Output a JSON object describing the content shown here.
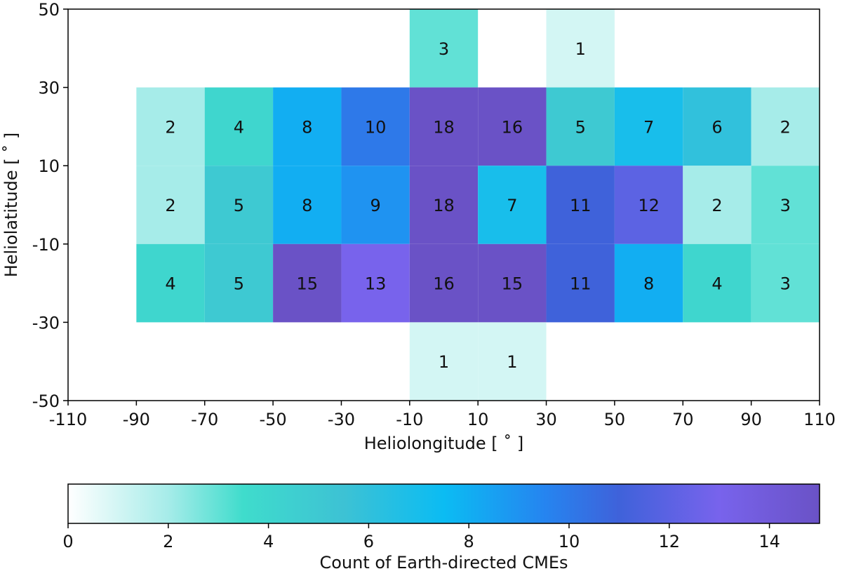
{
  "chart_data": {
    "type": "heatmap",
    "xlabel": "Heliolongitude [$^\\circ$]",
    "xlabel_display": "Heliolongitude [ ˚ ]",
    "ylabel_display": "Heliolatitude [ ˚ ]",
    "xlim": [
      -110,
      110
    ],
    "ylim": [
      -50,
      50
    ],
    "x_ticks": [
      -110,
      -90,
      -70,
      -50,
      -30,
      -10,
      10,
      30,
      50,
      70,
      90,
      110
    ],
    "y_ticks": [
      -50,
      -30,
      -10,
      10,
      30,
      50
    ],
    "x_tick_labels": [
      "-110",
      "-90",
      "-70",
      "-50",
      "-30",
      "-10",
      "10",
      "30",
      "50",
      "70",
      "90",
      "110"
    ],
    "y_tick_labels": [
      "-50",
      "-30",
      "-10",
      "10",
      "30",
      "50"
    ],
    "grid": false,
    "cells": [
      {
        "lon": [
          -10,
          10
        ],
        "lat": [
          30,
          50
        ],
        "count": 3
      },
      {
        "lon": [
          30,
          50
        ],
        "lat": [
          30,
          50
        ],
        "count": 1
      },
      {
        "lon": [
          -90,
          -70
        ],
        "lat": [
          10,
          30
        ],
        "count": 2
      },
      {
        "lon": [
          -70,
          -50
        ],
        "lat": [
          10,
          30
        ],
        "count": 4
      },
      {
        "lon": [
          -50,
          -30
        ],
        "lat": [
          10,
          30
        ],
        "count": 8
      },
      {
        "lon": [
          -30,
          -10
        ],
        "lat": [
          10,
          30
        ],
        "count": 10
      },
      {
        "lon": [
          -10,
          10
        ],
        "lat": [
          10,
          30
        ],
        "count": 18
      },
      {
        "lon": [
          10,
          30
        ],
        "lat": [
          10,
          30
        ],
        "count": 16
      },
      {
        "lon": [
          30,
          50
        ],
        "lat": [
          10,
          30
        ],
        "count": 5
      },
      {
        "lon": [
          50,
          70
        ],
        "lat": [
          10,
          30
        ],
        "count": 7
      },
      {
        "lon": [
          70,
          90
        ],
        "lat": [
          10,
          30
        ],
        "count": 6
      },
      {
        "lon": [
          90,
          110
        ],
        "lat": [
          10,
          30
        ],
        "count": 2
      },
      {
        "lon": [
          -90,
          -70
        ],
        "lat": [
          -10,
          10
        ],
        "count": 2
      },
      {
        "lon": [
          -70,
          -50
        ],
        "lat": [
          -10,
          10
        ],
        "count": 5
      },
      {
        "lon": [
          -50,
          -30
        ],
        "lat": [
          -10,
          10
        ],
        "count": 8
      },
      {
        "lon": [
          -30,
          -10
        ],
        "lat": [
          -10,
          10
        ],
        "count": 9
      },
      {
        "lon": [
          -10,
          10
        ],
        "lat": [
          -10,
          10
        ],
        "count": 18
      },
      {
        "lon": [
          10,
          30
        ],
        "lat": [
          -10,
          10
        ],
        "count": 7
      },
      {
        "lon": [
          30,
          50
        ],
        "lat": [
          -10,
          10
        ],
        "count": 11
      },
      {
        "lon": [
          50,
          70
        ],
        "lat": [
          -10,
          10
        ],
        "count": 12
      },
      {
        "lon": [
          70,
          90
        ],
        "lat": [
          -10,
          10
        ],
        "count": 2
      },
      {
        "lon": [
          90,
          110
        ],
        "lat": [
          -10,
          10
        ],
        "count": 3
      },
      {
        "lon": [
          -90,
          -70
        ],
        "lat": [
          -30,
          -10
        ],
        "count": 4
      },
      {
        "lon": [
          -70,
          -50
        ],
        "lat": [
          -30,
          -10
        ],
        "count": 5
      },
      {
        "lon": [
          -50,
          -30
        ],
        "lat": [
          -30,
          -10
        ],
        "count": 15
      },
      {
        "lon": [
          -30,
          -10
        ],
        "lat": [
          -30,
          -10
        ],
        "count": 13
      },
      {
        "lon": [
          -10,
          10
        ],
        "lat": [
          -30,
          -10
        ],
        "count": 16
      },
      {
        "lon": [
          10,
          30
        ],
        "lat": [
          -30,
          -10
        ],
        "count": 15
      },
      {
        "lon": [
          30,
          50
        ],
        "lat": [
          -30,
          -10
        ],
        "count": 11
      },
      {
        "lon": [
          50,
          70
        ],
        "lat": [
          -30,
          -10
        ],
        "count": 8
      },
      {
        "lon": [
          70,
          90
        ],
        "lat": [
          -30,
          -10
        ],
        "count": 4
      },
      {
        "lon": [
          90,
          110
        ],
        "lat": [
          -30,
          -10
        ],
        "count": 3
      },
      {
        "lon": [
          -10,
          10
        ],
        "lat": [
          -50,
          -30
        ],
        "count": 1
      },
      {
        "lon": [
          10,
          30
        ],
        "lat": [
          -50,
          -30
        ],
        "count": 1
      }
    ],
    "colorbar": {
      "label": "Count of Earth-directed CMEs",
      "range": [
        0,
        15
      ],
      "ticks": [
        0,
        2,
        4,
        6,
        8,
        10,
        12,
        14
      ],
      "tick_labels": [
        "0",
        "2",
        "4",
        "6",
        "8",
        "10",
        "12",
        "14"
      ],
      "orientation": "horizontal",
      "stops": [
        {
          "value": 0,
          "color": "#ffffff"
        },
        {
          "value": 2,
          "color": "#a6ece9"
        },
        {
          "value": 3.5,
          "color": "#3fdccc"
        },
        {
          "value": 5.5,
          "color": "#3dc2d4"
        },
        {
          "value": 7.5,
          "color": "#0bbcf3"
        },
        {
          "value": 9.5,
          "color": "#2585f0"
        },
        {
          "value": 11,
          "color": "#3f62da"
        },
        {
          "value": 13,
          "color": "#7863ec"
        },
        {
          "value": 15,
          "color": "#6a52c6"
        }
      ]
    }
  }
}
